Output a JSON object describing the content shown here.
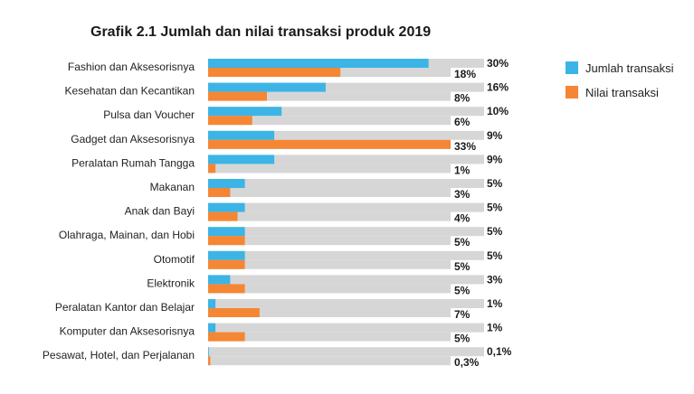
{
  "chart_data": {
    "type": "bar",
    "orientation": "horizontal",
    "title": "Grafik 2.1 Jumlah dan nilai transaksi produk 2019",
    "categories": [
      "Fashion dan Aksesorisnya",
      "Kesehatan dan Kecantikan",
      "Pulsa dan Voucher",
      "Gadget dan Aksesorisnya",
      "Peralatan Rumah Tangga",
      "Makanan",
      "Anak dan Bayi",
      "Olahraga, Mainan, dan Hobi",
      "Otomotif",
      "Elektronik",
      "Peralatan Kantor dan Belajar",
      "Komputer dan Aksesorisnya",
      "Pesawat, Hotel, dan Perjalanan"
    ],
    "series": [
      {
        "name": "Jumlah transaksi",
        "color": "#3cb4e5",
        "values": [
          30,
          16,
          10,
          9,
          9,
          5,
          5,
          5,
          5,
          3,
          1,
          1,
          0.1
        ],
        "labels": [
          "30%",
          "16%",
          "10%",
          "9%",
          "9%",
          "5%",
          "5%",
          "5%",
          "5%",
          "3%",
          "1%",
          "1%",
          "0,1%"
        ]
      },
      {
        "name": "Nilai transaksi",
        "color": "#f58634",
        "values": [
          18,
          8,
          6,
          33,
          1,
          3,
          4,
          5,
          5,
          5,
          7,
          5,
          0.3
        ],
        "labels": [
          "18%",
          "8%",
          "6%",
          "33%",
          "1%",
          "3%",
          "4%",
          "5%",
          "5%",
          "5%",
          "7%",
          "5%",
          "0,3%"
        ]
      }
    ],
    "track_color": "#d6d6d6",
    "xlim": [
      0,
      33
    ],
    "legend_position": "top-right"
  }
}
